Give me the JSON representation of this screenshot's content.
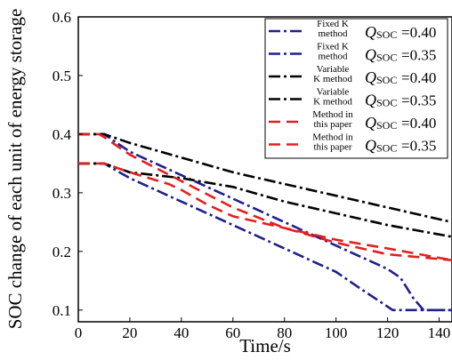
{
  "chart_data": {
    "type": "line",
    "xlabel": "Time/s",
    "ylabel": "SOC change of each unit of energy storage",
    "xlim": [
      0,
      145
    ],
    "ylim": [
      0.08,
      0.6
    ],
    "x_ticks": [
      "0",
      "20",
      "40",
      "60",
      "80",
      "100",
      "120",
      "140"
    ],
    "y_ticks": [
      "0.1",
      "0.2",
      "0.3",
      "0.4",
      "0.5",
      "0.6"
    ],
    "grid": false,
    "legend_position": "top-right",
    "series": [
      {
        "name_lines": [
          "Fixed K",
          "method"
        ],
        "q_symbol": "Q",
        "q_subscript": "SOC",
        "q_value": "=0.40",
        "color": "#1f1f8f",
        "dash": "dashdot",
        "points": [
          [
            0,
            0.4
          ],
          [
            10,
            0.4
          ],
          [
            20,
            0.37
          ],
          [
            40,
            0.33
          ],
          [
            60,
            0.29
          ],
          [
            80,
            0.25
          ],
          [
            100,
            0.21
          ],
          [
            120,
            0.17
          ],
          [
            125,
            0.155
          ],
          [
            130,
            0.12
          ],
          [
            134,
            0.1
          ],
          [
            145,
            0.1
          ]
        ]
      },
      {
        "name_lines": [
          "Fixed K",
          "method"
        ],
        "q_symbol": "Q",
        "q_subscript": "SOC",
        "q_value": "=0.35",
        "color": "#1f1f8f",
        "dash": "dashdot",
        "points": [
          [
            0,
            0.35
          ],
          [
            10,
            0.35
          ],
          [
            20,
            0.325
          ],
          [
            40,
            0.285
          ],
          [
            60,
            0.245
          ],
          [
            80,
            0.205
          ],
          [
            100,
            0.165
          ],
          [
            110,
            0.135
          ],
          [
            122,
            0.1
          ],
          [
            145,
            0.1
          ]
        ]
      },
      {
        "name_lines": [
          "Variable",
          "K method"
        ],
        "q_symbol": "Q",
        "q_subscript": "SOC",
        "q_value": "=0.40",
        "color": "#000000",
        "dash": "dashdot",
        "points": [
          [
            0,
            0.4
          ],
          [
            10,
            0.4
          ],
          [
            20,
            0.385
          ],
          [
            40,
            0.36
          ],
          [
            60,
            0.335
          ],
          [
            80,
            0.315
          ],
          [
            100,
            0.295
          ],
          [
            120,
            0.275
          ],
          [
            145,
            0.25
          ]
        ]
      },
      {
        "name_lines": [
          "Variable",
          "K method"
        ],
        "q_symbol": "Q",
        "q_subscript": "SOC",
        "q_value": "=0.35",
        "color": "#000000",
        "dash": "dashdot",
        "points": [
          [
            0,
            0.35
          ],
          [
            10,
            0.35
          ],
          [
            20,
            0.335
          ],
          [
            40,
            0.325
          ],
          [
            60,
            0.31
          ],
          [
            80,
            0.285
          ],
          [
            100,
            0.265
          ],
          [
            120,
            0.245
          ],
          [
            145,
            0.225
          ]
        ]
      },
      {
        "name_lines": [
          "Method in",
          "this paper"
        ],
        "q_symbol": "Q",
        "q_subscript": "SOC",
        "q_value": "=0.40",
        "color": "#e02020",
        "dash": "dash",
        "points": [
          [
            0,
            0.4
          ],
          [
            8,
            0.4
          ],
          [
            10,
            0.395
          ],
          [
            15,
            0.38
          ],
          [
            20,
            0.365
          ],
          [
            40,
            0.32
          ],
          [
            60,
            0.275
          ],
          [
            80,
            0.24
          ],
          [
            100,
            0.215
          ],
          [
            120,
            0.195
          ],
          [
            145,
            0.185
          ]
        ]
      },
      {
        "name_lines": [
          "Method in",
          "this paper"
        ],
        "q_symbol": "Q",
        "q_subscript": "SOC",
        "q_value": "=0.35",
        "color": "#e02020",
        "dash": "dash",
        "points": [
          [
            0,
            0.35
          ],
          [
            10,
            0.35
          ],
          [
            20,
            0.335
          ],
          [
            35,
            0.315
          ],
          [
            40,
            0.305
          ],
          [
            50,
            0.28
          ],
          [
            60,
            0.26
          ],
          [
            80,
            0.24
          ],
          [
            100,
            0.22
          ],
          [
            120,
            0.205
          ],
          [
            145,
            0.185
          ]
        ]
      }
    ]
  }
}
